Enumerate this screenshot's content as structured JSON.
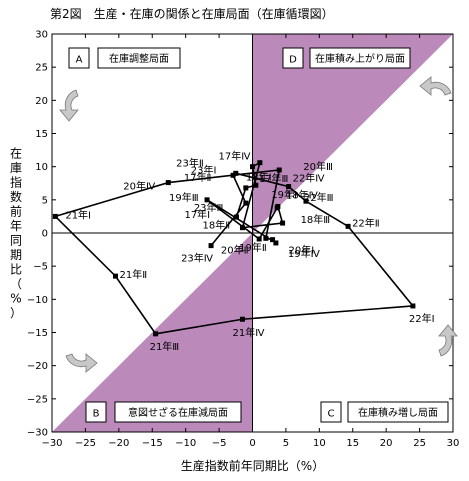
{
  "title": "第2図　生産・在庫の関係と在庫局面（在庫循環図）",
  "colors": {
    "shade": "#bb8abb",
    "line": "#000000"
  },
  "chart_data": {
    "type": "scatter",
    "connected": true,
    "title": "第2図　生産・在庫の関係と在庫局面（在庫循環図）",
    "xlabel": "生産指数前年同期比（%）",
    "ylabel": "在庫指数前年同期比（%）",
    "xlim": [
      -30,
      30
    ],
    "ylim": [
      -30,
      30
    ],
    "xticks": [
      -30,
      -25,
      -20,
      -15,
      -10,
      -5,
      0,
      5,
      10,
      15,
      20,
      25,
      30
    ],
    "yticks": [
      -30,
      -25,
      -20,
      -15,
      -10,
      -5,
      0,
      5,
      10,
      15,
      20,
      25,
      30
    ],
    "grid": false,
    "quadrants": [
      {
        "letter": "A",
        "label": "在庫調整局面"
      },
      {
        "letter": "B",
        "label": "意図せざる在庫減局面"
      },
      {
        "letter": "C",
        "label": "在庫積み増し局面"
      },
      {
        "letter": "D",
        "label": "在庫積み上がり局面"
      }
    ],
    "points": [
      {
        "label": "17年Ⅰ",
        "x": -2.4,
        "y": 2.4
      },
      {
        "label": "17年Ⅱ",
        "x": -1.0,
        "y": 6.8
      },
      {
        "label": "17年Ⅲ",
        "x": 0.5,
        "y": 7.2
      },
      {
        "label": "17年Ⅳ",
        "x": 0.0,
        "y": 10.0
      },
      {
        "label": "18年Ⅰ",
        "x": 1.1,
        "y": 10.6
      },
      {
        "label": "18年Ⅱ",
        "x": -1.5,
        "y": 0.8
      },
      {
        "label": "18年Ⅲ",
        "x": 4.5,
        "y": 1.5
      },
      {
        "label": "18年Ⅳ",
        "x": 3.8,
        "y": 4.0
      },
      {
        "label": "19年Ⅰ",
        "x": 3.7,
        "y": 3.8
      },
      {
        "label": "19年Ⅱ",
        "x": 1.0,
        "y": -0.9
      },
      {
        "label": "19年Ⅲ",
        "x": -6.8,
        "y": 5.0
      },
      {
        "label": "19年Ⅳ",
        "x": 3.5,
        "y": -1.5
      },
      {
        "label": "20年Ⅰ",
        "x": 3.0,
        "y": -1.0
      },
      {
        "label": "20年Ⅱ",
        "x": 2.0,
        "y": -0.8
      },
      {
        "label": "20年Ⅲ",
        "x": 4.0,
        "y": 9.5
      },
      {
        "label": "20年Ⅳ",
        "x": -12.6,
        "y": 7.6
      },
      {
        "label": "21年Ⅰ",
        "x": -29.5,
        "y": 2.5
      },
      {
        "label": "21年Ⅱ",
        "x": -20.5,
        "y": -6.5
      },
      {
        "label": "21年Ⅲ",
        "x": -14.5,
        "y": -15.2
      },
      {
        "label": "21年Ⅳ",
        "x": -1.5,
        "y": -13.0
      },
      {
        "label": "22年Ⅰ",
        "x": 24.0,
        "y": -11.0
      },
      {
        "label": "22年Ⅱ",
        "x": 14.3,
        "y": 1.0
      },
      {
        "label": "22年Ⅲ",
        "x": 8.0,
        "y": 4.8
      },
      {
        "label": "22年Ⅳ",
        "x": 5.4,
        "y": 7.0
      },
      {
        "label": "23年Ⅰ",
        "x": -2.5,
        "y": 9.0
      },
      {
        "label": "23年Ⅱ",
        "x": -2.9,
        "y": 8.7
      },
      {
        "label": "23年Ⅲ",
        "x": -1.0,
        "y": 4.5
      },
      {
        "label": "23年Ⅳ",
        "x": -6.2,
        "y": -1.9
      }
    ]
  }
}
